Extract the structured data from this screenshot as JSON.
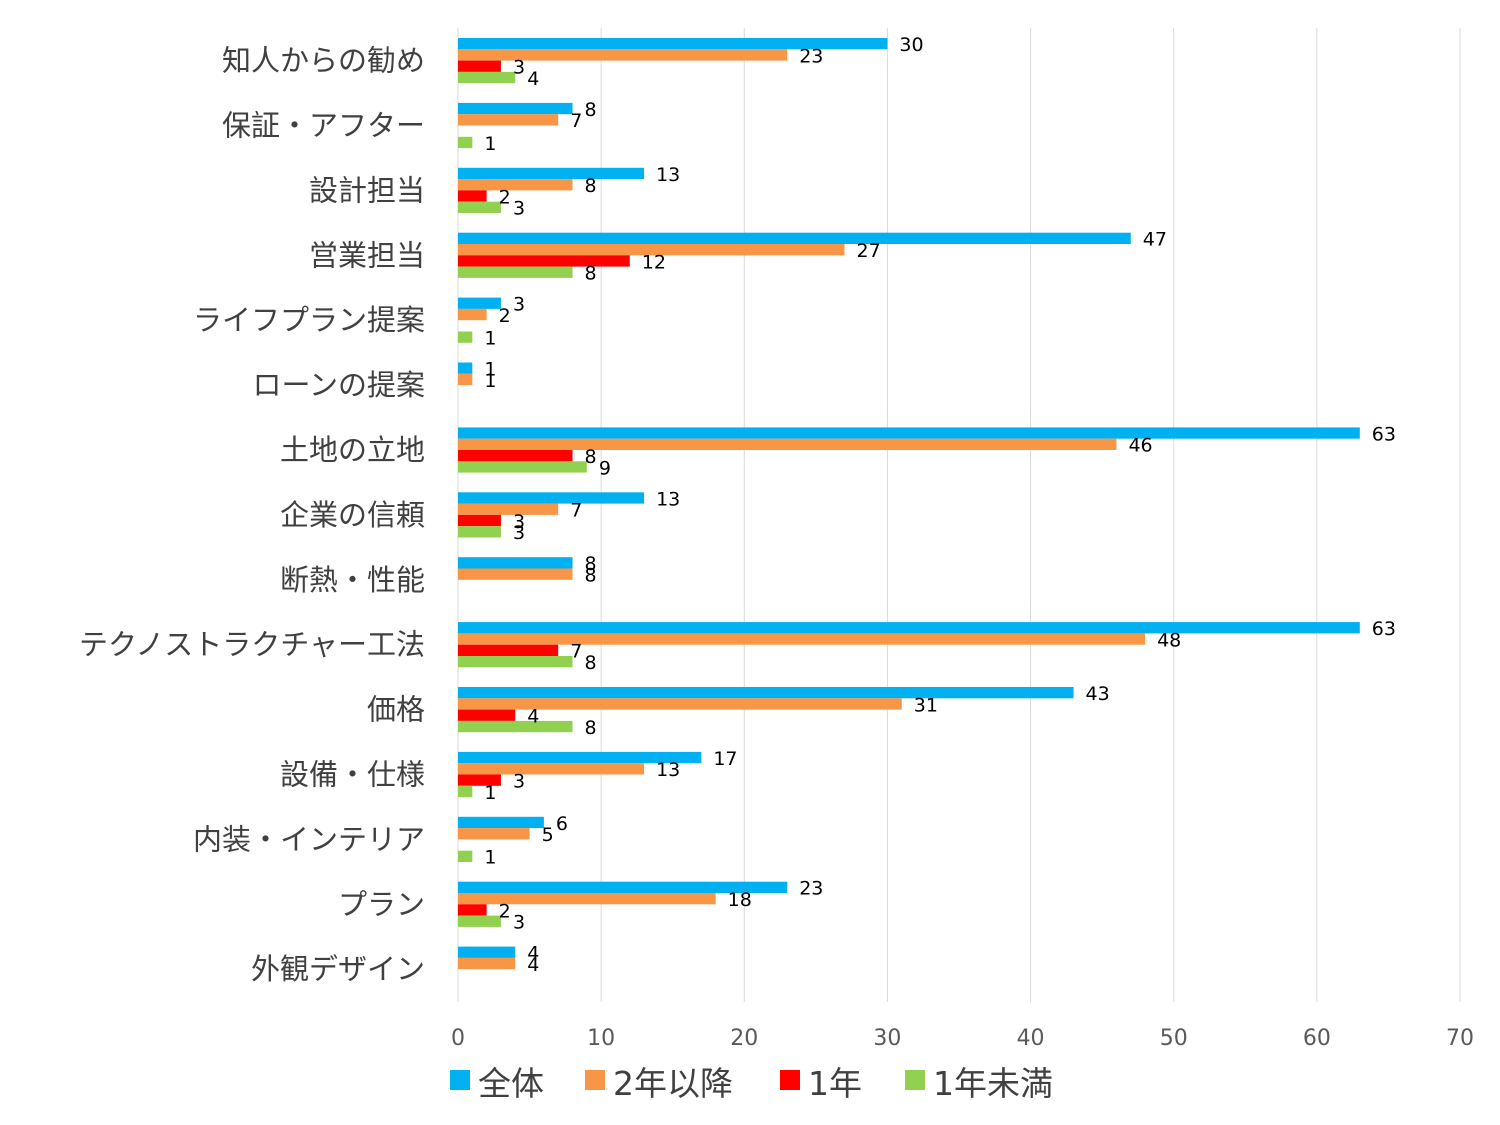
{
  "chart_data": {
    "type": "bar",
    "orientation": "horizontal",
    "categories": [
      "知人からの勧め",
      "保証・アフター",
      "設計担当",
      "営業担当",
      "ライフプラン提案",
      "ローンの提案",
      "土地の立地",
      "企業の信頼",
      "断熱・性能",
      "テクノストラクチャー工法",
      "価格",
      "設備・仕様",
      "内装・インテリア",
      "プラン",
      "外観デザイン"
    ],
    "series": [
      {
        "name": "全体",
        "color": "#00b0f0",
        "values": [
          30,
          8,
          13,
          47,
          3,
          1,
          63,
          13,
          8,
          63,
          43,
          17,
          6,
          23,
          4
        ]
      },
      {
        "name": "2年以降",
        "color": "#f79646",
        "values": [
          23,
          7,
          8,
          27,
          2,
          1,
          46,
          7,
          8,
          48,
          31,
          13,
          5,
          18,
          4
        ]
      },
      {
        "name": "1年",
        "color": "#ff0000",
        "values": [
          3,
          null,
          2,
          12,
          null,
          null,
          8,
          3,
          null,
          7,
          4,
          3,
          null,
          2,
          null
        ]
      },
      {
        "name": "1年未満",
        "color": "#92d050",
        "values": [
          4,
          1,
          3,
          8,
          1,
          null,
          9,
          3,
          null,
          8,
          8,
          1,
          1,
          3,
          null
        ]
      }
    ],
    "xlim": [
      0,
      70
    ],
    "xticks": [
      0,
      10,
      20,
      30,
      40,
      50,
      60,
      70
    ],
    "grid": true,
    "legend": "bottom"
  }
}
